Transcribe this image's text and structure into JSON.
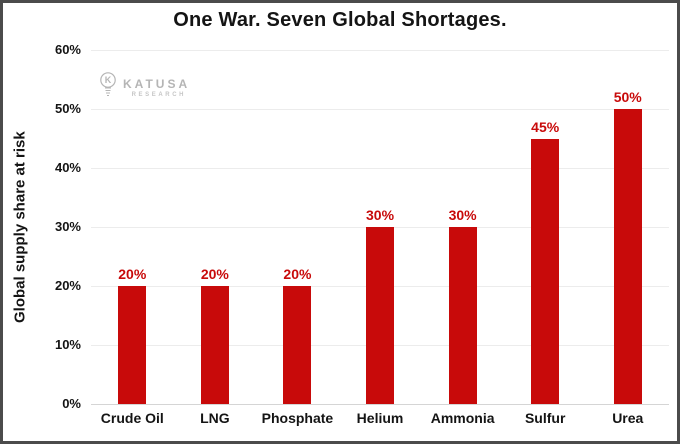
{
  "chart_data": {
    "type": "bar",
    "title": "One War. Seven Global Shortages.",
    "ylabel": "Global supply share at risk",
    "xlabel": "",
    "categories": [
      "Crude Oil",
      "LNG",
      "Phosphate",
      "Helium",
      "Ammonia",
      "Sulfur",
      "Urea"
    ],
    "values": [
      20,
      20,
      20,
      30,
      30,
      45,
      50
    ],
    "value_labels": [
      "20%",
      "20%",
      "20%",
      "30%",
      "30%",
      "45%",
      "50%"
    ],
    "ylim": [
      0,
      60
    ],
    "ytick_step": 10,
    "ytick_labels": [
      "0%",
      "10%",
      "20%",
      "30%",
      "40%",
      "50%",
      "60%"
    ],
    "grid": "horizontal gridlines, light gray",
    "legend": "none"
  },
  "colors": {
    "bar": "#c80a0a",
    "value_label": "#c80a0a",
    "title_text": "#141414",
    "grid": "#ececec",
    "axis_line": "#d5d5d5",
    "logo_gray": "#b5b5b5",
    "frame_border": "#4b4b4b",
    "background": "#ffffff"
  },
  "logo": {
    "name": "KATUSA",
    "subtitle": "RESEARCH",
    "icon": "lightbulb-k-icon"
  }
}
